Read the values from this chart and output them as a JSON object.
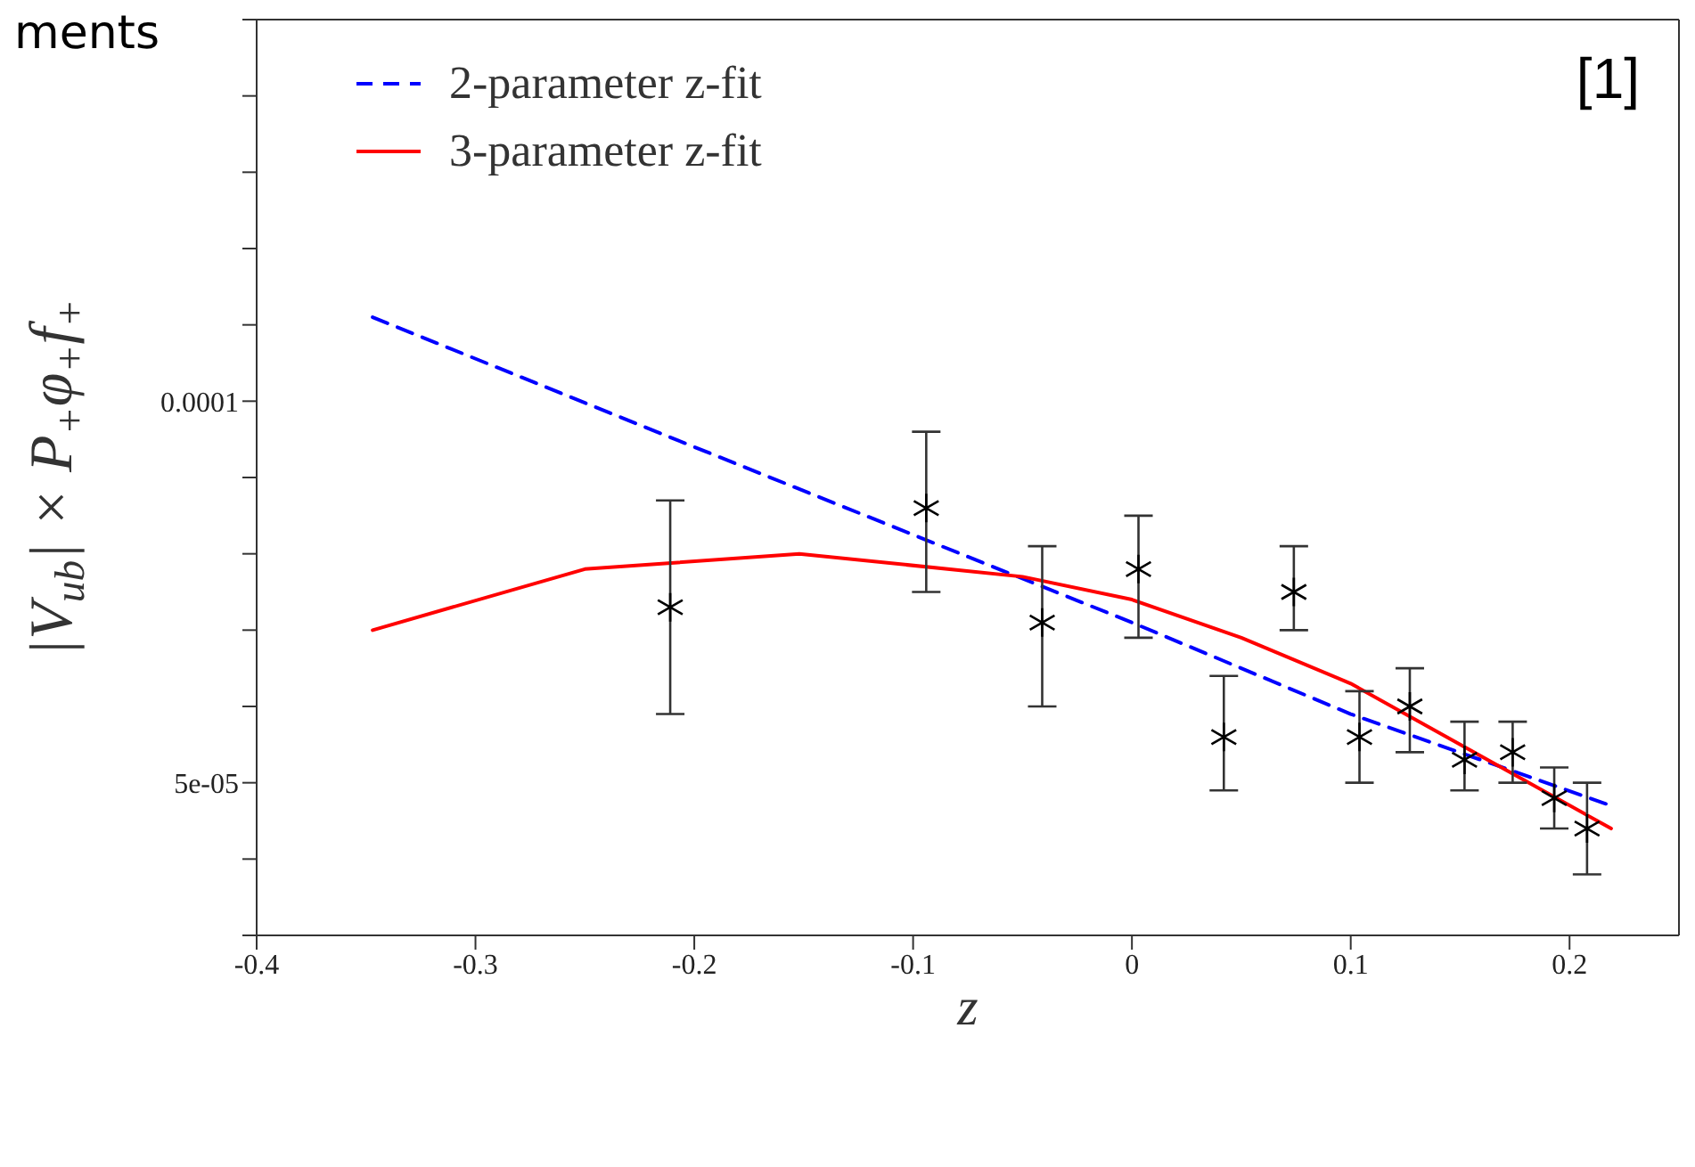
{
  "chart_data": {
    "type": "scatter",
    "xlabel": "z",
    "ylabel": "|V$_{ub}$| × P$_{+}$φ$_{+}$f$_{+}$",
    "annotations": [
      "ments",
      "[1]"
    ],
    "xlim": [
      -0.4,
      0.25
    ],
    "xticks": [
      -0.4,
      -0.3,
      -0.2,
      -0.1,
      0,
      0.1,
      0.2
    ],
    "ylim": [
      3e-05,
      0.00015
    ],
    "yticks": [
      {
        "value": 3e-05,
        "label": null
      },
      {
        "value": 4e-05,
        "label": null
      },
      {
        "value": 5e-05,
        "label": "5e-05"
      },
      {
        "value": 6e-05,
        "label": null
      },
      {
        "value": 7e-05,
        "label": null
      },
      {
        "value": 8e-05,
        "label": null
      },
      {
        "value": 9e-05,
        "label": null
      },
      {
        "value": 0.0001,
        "label": "0.0001"
      },
      {
        "value": 0.00011,
        "label": null
      },
      {
        "value": 0.00012,
        "label": null
      },
      {
        "value": 0.00013,
        "label": null
      },
      {
        "value": 0.00014,
        "label": null
      },
      {
        "value": 0.00015,
        "label": null
      }
    ],
    "grid": false,
    "legend": "top left",
    "series": [
      {
        "type": "line",
        "name": "2-parameter z-fit",
        "color": "#0000ff",
        "line_style": "dashed",
        "marker": "none",
        "x": [
          -0.347,
          -0.2,
          0,
          0.1,
          0.219
        ],
        "values": [
          0.000111,
          9.4e-05,
          7.1e-05,
          5.9e-05,
          4.7e-05
        ]
      },
      {
        "type": "line",
        "name": "3-parameter z-fit",
        "color": "#ff0000",
        "line_style": "solid",
        "marker": "none",
        "x": [
          -0.347,
          -0.25,
          -0.152,
          -0.05,
          0,
          0.05,
          0.1,
          0.15,
          0.219
        ],
        "values": [
          7e-05,
          7.8e-05,
          8e-05,
          7.7e-05,
          7.4e-05,
          6.9e-05,
          6.3e-05,
          5.5e-05,
          4.4e-05
        ]
      },
      {
        "type": "scatter",
        "color": "#000000",
        "marker": "cross",
        "x": [
          -0.211,
          -0.094,
          -0.041,
          0.003,
          0.042,
          0.074,
          0.104,
          0.127,
          0.152,
          0.174,
          0.193,
          0.208
        ],
        "values": [
          7.3e-05,
          8.6e-05,
          7.1e-05,
          7.8e-05,
          5.6e-05,
          7.5e-05,
          5.6e-05,
          6e-05,
          5.3e-05,
          5.4e-05,
          4.8e-05,
          4.4e-05
        ],
        "errors": [
          [
            5.9e-05,
            8.7e-05
          ],
          [
            7.5e-05,
            9.6e-05
          ],
          [
            6e-05,
            8.1e-05
          ],
          [
            6.9e-05,
            8.5e-05
          ],
          [
            4.9e-05,
            6.4e-05
          ],
          [
            7e-05,
            8.1e-05
          ],
          [
            5e-05,
            6.2e-05
          ],
          [
            5.4e-05,
            6.5e-05
          ],
          [
            4.9e-05,
            5.8e-05
          ],
          [
            5e-05,
            5.8e-05
          ],
          [
            4.4e-05,
            5.2e-05
          ],
          [
            3.8e-05,
            5e-05
          ]
        ]
      }
    ]
  }
}
